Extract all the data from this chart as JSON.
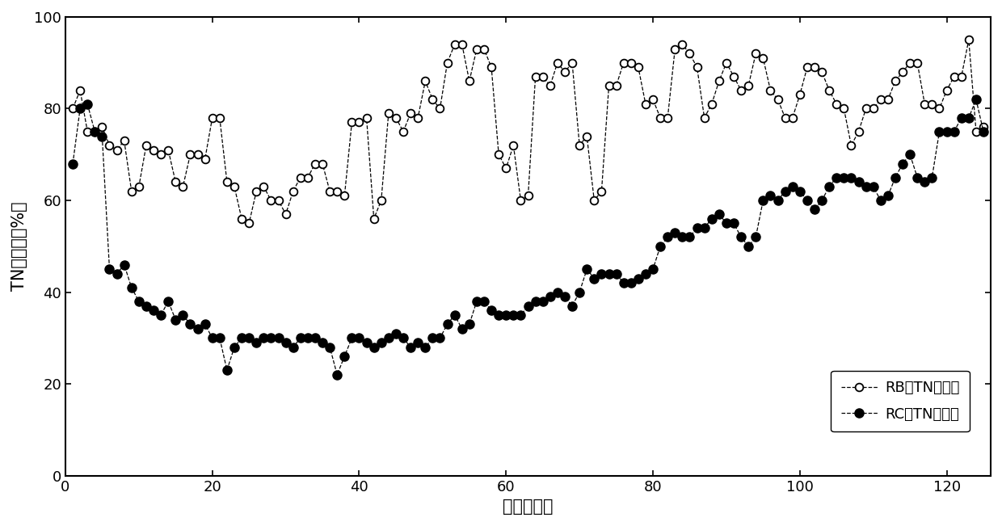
{
  "rb_x": [
    1,
    2,
    3,
    4,
    5,
    6,
    7,
    8,
    9,
    10,
    11,
    12,
    13,
    14,
    15,
    16,
    17,
    18,
    19,
    20,
    21,
    22,
    23,
    24,
    25,
    26,
    27,
    28,
    29,
    30,
    31,
    32,
    33,
    34,
    35,
    36,
    37,
    38,
    39,
    40,
    41,
    42,
    43,
    44,
    45,
    46,
    47,
    48,
    49,
    50,
    51,
    52,
    53,
    54,
    55,
    56,
    57,
    58,
    59,
    60,
    61,
    62,
    63,
    64,
    65,
    66,
    67,
    68,
    69,
    70,
    71,
    72,
    73,
    74,
    75,
    76,
    77,
    78,
    79,
    80,
    81,
    82,
    83,
    84,
    85,
    86,
    87,
    88,
    89,
    90,
    91,
    92,
    93,
    94,
    95,
    96,
    97,
    98,
    99,
    100,
    101,
    102,
    103,
    104,
    105,
    106,
    107,
    108,
    109,
    110,
    111,
    112,
    113,
    114,
    115,
    116,
    117,
    118,
    119,
    120,
    121,
    122,
    123,
    124,
    125
  ],
  "rb_y": [
    80,
    84,
    75,
    75,
    76,
    72,
    71,
    73,
    62,
    63,
    72,
    71,
    70,
    71,
    64,
    63,
    70,
    70,
    69,
    78,
    78,
    64,
    63,
    56,
    55,
    62,
    63,
    60,
    60,
    57,
    62,
    65,
    65,
    68,
    68,
    62,
    62,
    61,
    77,
    77,
    78,
    56,
    60,
    79,
    78,
    75,
    79,
    78,
    86,
    82,
    80,
    90,
    94,
    94,
    86,
    93,
    93,
    89,
    70,
    67,
    72,
    60,
    61,
    87,
    87,
    85,
    90,
    88,
    90,
    72,
    74,
    60,
    62,
    85,
    85,
    90,
    90,
    89,
    81,
    82,
    78,
    78,
    93,
    94,
    92,
    89,
    78,
    81,
    86,
    90,
    87,
    84,
    85,
    92,
    91,
    84,
    82,
    78,
    78,
    83,
    89,
    89,
    88,
    84,
    81,
    80,
    72,
    75,
    80,
    80,
    82,
    82,
    86,
    88,
    90,
    90,
    81,
    81,
    80,
    84,
    87,
    87,
    95,
    75,
    76
  ],
  "rc_x": [
    1,
    2,
    3,
    4,
    5,
    6,
    7,
    8,
    9,
    10,
    11,
    12,
    13,
    14,
    15,
    16,
    17,
    18,
    19,
    20,
    21,
    22,
    23,
    24,
    25,
    26,
    27,
    28,
    29,
    30,
    31,
    32,
    33,
    34,
    35,
    36,
    37,
    38,
    39,
    40,
    41,
    42,
    43,
    44,
    45,
    46,
    47,
    48,
    49,
    50,
    51,
    52,
    53,
    54,
    55,
    56,
    57,
    58,
    59,
    60,
    61,
    62,
    63,
    64,
    65,
    66,
    67,
    68,
    69,
    70,
    71,
    72,
    73,
    74,
    75,
    76,
    77,
    78,
    79,
    80,
    81,
    82,
    83,
    84,
    85,
    86,
    87,
    88,
    89,
    90,
    91,
    92,
    93,
    94,
    95,
    96,
    97,
    98,
    99,
    100,
    101,
    102,
    103,
    104,
    105,
    106,
    107,
    108,
    109,
    110,
    111,
    112,
    113,
    114,
    115,
    116,
    117,
    118,
    119,
    120,
    121,
    122,
    123,
    124,
    125
  ],
  "rc_y": [
    68,
    80,
    81,
    75,
    74,
    45,
    44,
    46,
    41,
    38,
    37,
    36,
    35,
    38,
    34,
    35,
    33,
    32,
    33,
    30,
    30,
    23,
    28,
    30,
    30,
    29,
    30,
    30,
    30,
    29,
    28,
    30,
    30,
    30,
    29,
    28,
    22,
    26,
    30,
    30,
    29,
    28,
    29,
    30,
    31,
    30,
    28,
    29,
    28,
    30,
    30,
    33,
    35,
    32,
    33,
    38,
    38,
    36,
    35,
    35,
    35,
    35,
    37,
    38,
    38,
    39,
    40,
    39,
    37,
    40,
    45,
    43,
    44,
    44,
    44,
    42,
    42,
    43,
    44,
    45,
    50,
    52,
    53,
    52,
    52,
    54,
    54,
    56,
    57,
    55,
    55,
    52,
    50,
    52,
    60,
    61,
    60,
    62,
    63,
    62,
    60,
    58,
    60,
    63,
    65,
    65,
    65,
    64,
    63,
    63,
    60,
    61,
    65,
    68,
    70,
    65,
    64,
    65,
    75,
    75,
    75,
    78,
    78,
    82,
    75
  ],
  "xlabel": "时间（天）",
  "ylabel": "TN去除率（%）",
  "legend_rb_label": "RB中TN去除率",
  "legend_rc_label": "RC中TN去除率",
  "xlim": [
    0,
    126
  ],
  "ylim": [
    0,
    100
  ],
  "xticks": [
    0,
    20,
    40,
    60,
    80,
    100,
    120
  ],
  "yticks": [
    0,
    20,
    40,
    60,
    80,
    100
  ],
  "line_color": "#000000",
  "bg_color": "#ffffff"
}
